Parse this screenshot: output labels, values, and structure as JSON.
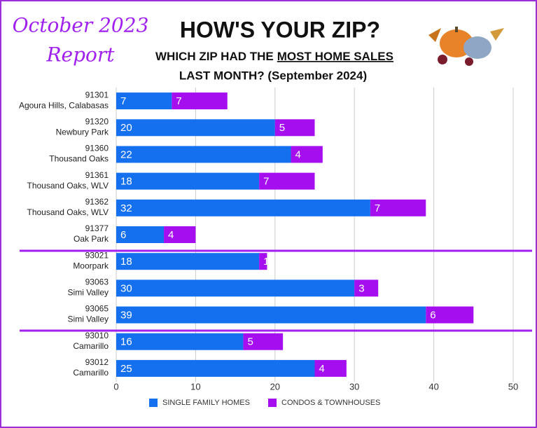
{
  "header": {
    "report_label": [
      "October 2023",
      "Report"
    ],
    "title": "HOW'S YOUR ZIP?",
    "subtitle": [
      "WHICH ZIP HAD THE",
      "MOST HOME SALES",
      "LAST MONTH? (September 2024)"
    ]
  },
  "chart_data": {
    "type": "stacked_barh",
    "categories": [
      [
        "91301",
        "Agoura Hills, Calabasas"
      ],
      [
        "91320",
        "Newbury Park"
      ],
      [
        "91360",
        "Thousand Oaks"
      ],
      [
        "91361",
        "Thousand Oaks, WLV"
      ],
      [
        "91362",
        "Thousand Oaks, WLV"
      ],
      [
        "91377",
        "Oak Park"
      ],
      [
        "93021",
        "Moorpark"
      ],
      [
        "93063",
        "Simi Valley"
      ],
      [
        "93065",
        "Simi Valley"
      ],
      [
        "93010",
        "Camarillo"
      ],
      [
        "93012",
        "Camarillo"
      ]
    ],
    "series": [
      {
        "name": "SINGLE FAMILY HOMES",
        "color": "#1570f0",
        "values": [
          7,
          20,
          22,
          18,
          32,
          6,
          18,
          30,
          39,
          16,
          25
        ]
      },
      {
        "name": "CONDOS & TOWNHOUSES",
        "color": "#a50ff0",
        "values": [
          7,
          5,
          4,
          7,
          7,
          4,
          1,
          3,
          6,
          5,
          4
        ]
      }
    ],
    "xlim": [
      0,
      50
    ],
    "xticks": [
      0,
      10,
      20,
      30,
      40,
      50
    ],
    "grid": true
  }
}
